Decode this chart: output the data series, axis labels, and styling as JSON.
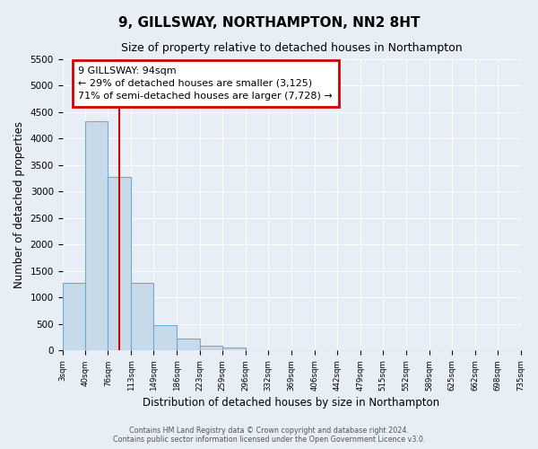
{
  "title": "9, GILLSWAY, NORTHAMPTON, NN2 8HT",
  "subtitle": "Size of property relative to detached houses in Northampton",
  "xlabel": "Distribution of detached houses by size in Northampton",
  "ylabel": "Number of detached properties",
  "bar_color": "#c8d9ea",
  "bar_edge_color": "#6aaed6",
  "background_color": "#e8eef5",
  "grid_color": "#ffffff",
  "bin_edges": [
    3,
    40,
    76,
    113,
    149,
    186,
    223,
    259,
    296,
    332,
    369,
    406,
    442,
    479,
    515,
    552,
    589,
    625,
    662,
    698,
    735
  ],
  "bin_labels": [
    "3sqm",
    "40sqm",
    "76sqm",
    "113sqm",
    "149sqm",
    "186sqm",
    "223sqm",
    "259sqm",
    "296sqm",
    "332sqm",
    "369sqm",
    "406sqm",
    "442sqm",
    "479sqm",
    "515sqm",
    "552sqm",
    "589sqm",
    "625sqm",
    "662sqm",
    "698sqm",
    "735sqm"
  ],
  "bar_heights": [
    1270,
    4330,
    3280,
    1280,
    480,
    230,
    90,
    55,
    0,
    0,
    0,
    0,
    0,
    0,
    0,
    0,
    0,
    0,
    0,
    0
  ],
  "property_size": 94,
  "ylim": [
    0,
    5500
  ],
  "yticks": [
    0,
    500,
    1000,
    1500,
    2000,
    2500,
    3000,
    3500,
    4000,
    4500,
    5000,
    5500
  ],
  "annotation_title": "9 GILLSWAY: 94sqm",
  "annotation_line1": "← 29% of detached houses are smaller (3,125)",
  "annotation_line2": "71% of semi-detached houses are larger (7,728) →",
  "annotation_box_facecolor": "#ffffff",
  "annotation_box_edgecolor": "#cc0000",
  "vline_color": "#cc0000",
  "title_fontsize": 11,
  "subtitle_fontsize": 9,
  "footer_line1": "Contains HM Land Registry data © Crown copyright and database right 2024.",
  "footer_line2": "Contains public sector information licensed under the Open Government Licence v3.0."
}
